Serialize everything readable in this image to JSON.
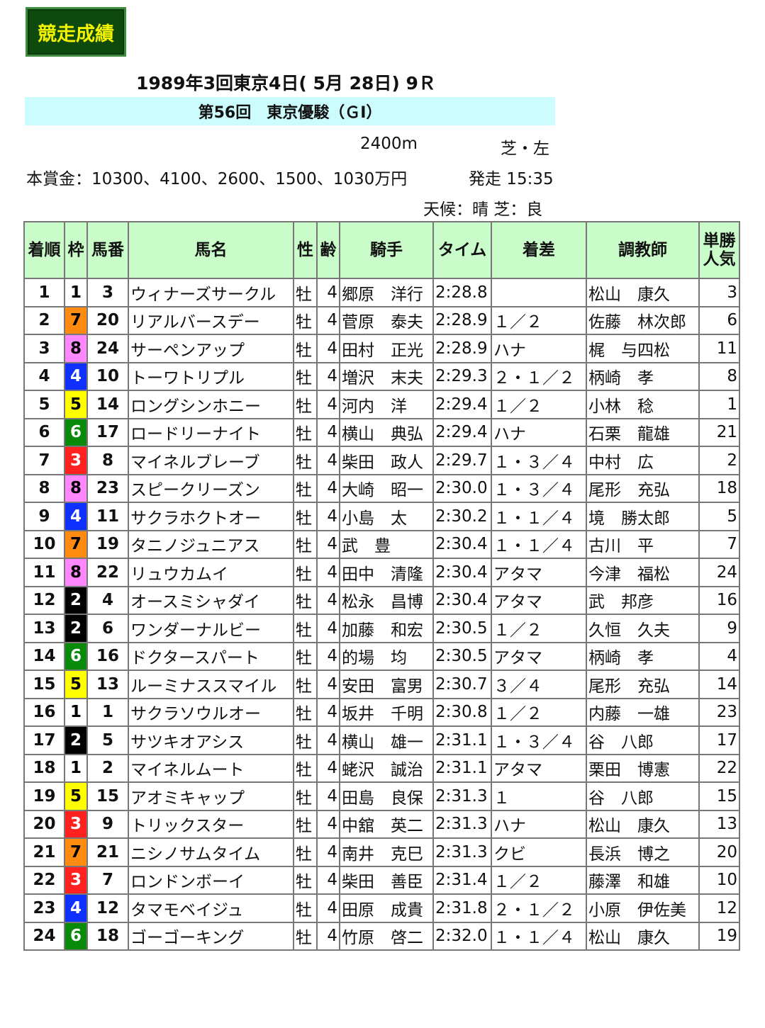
{
  "badge": "競走成績",
  "date": "1989年3回東京4日( 5月 28日) 9Ｒ",
  "race_name": "第56回　東京優駿（ＧⅠ）",
  "distance": "2400m",
  "surface": "芝・左",
  "prize": "本賞金：10300、4100、2600、1500、1030万円",
  "start": "発走 15:35",
  "weather": "天候：晴 芝：良",
  "frame_colors": {
    "1": [
      "#ffffff",
      "#000000"
    ],
    "2": [
      "#000000",
      "#ffffff"
    ],
    "3": [
      "#ff2020",
      "#ffffff"
    ],
    "4": [
      "#1030ff",
      "#ffffff"
    ],
    "5": [
      "#ffff00",
      "#000000"
    ],
    "6": [
      "#0a8a0a",
      "#ffffff"
    ],
    "7": [
      "#ff8c10",
      "#000000"
    ],
    "8": [
      "#ff88ff",
      "#000000"
    ]
  },
  "headers": [
    "着順",
    "枠",
    "馬番",
    "馬名",
    "性",
    "齢",
    "騎手",
    "タイム",
    "着差",
    "調教師",
    "単勝人気"
  ],
  "rows": [
    [
      "1",
      "1",
      "3",
      "ウィナーズサークル",
      "牡",
      "4",
      "郷原　洋行",
      "2:28.8",
      "",
      "松山　康久",
      "3"
    ],
    [
      "2",
      "7",
      "20",
      "リアルバースデー",
      "牡",
      "4",
      "菅原　泰夫",
      "2:28.9",
      "１／２",
      "佐藤　林次郎",
      "6"
    ],
    [
      "3",
      "8",
      "24",
      "サーペンアップ",
      "牡",
      "4",
      "田村　正光",
      "2:28.9",
      "ハナ",
      "梶　与四松",
      "11"
    ],
    [
      "4",
      "4",
      "10",
      "トーワトリプル",
      "牡",
      "4",
      "増沢　末夫",
      "2:29.3",
      "２・１／２",
      "柄崎　孝",
      "8"
    ],
    [
      "5",
      "5",
      "14",
      "ロングシンホニー",
      "牡",
      "4",
      "河内　洋",
      "2:29.4",
      "１／２",
      "小林　稔",
      "1"
    ],
    [
      "6",
      "6",
      "17",
      "ロードリーナイト",
      "牡",
      "4",
      "横山　典弘",
      "2:29.4",
      "ハナ",
      "石栗　龍雄",
      "21"
    ],
    [
      "7",
      "3",
      "8",
      "マイネルブレーブ",
      "牡",
      "4",
      "柴田　政人",
      "2:29.7",
      "１・３／４",
      "中村　広",
      "2"
    ],
    [
      "8",
      "8",
      "23",
      "スピークリーズン",
      "牡",
      "4",
      "大崎　昭一",
      "2:30.0",
      "１・３／４",
      "尾形　充弘",
      "18"
    ],
    [
      "9",
      "4",
      "11",
      "サクラホクトオー",
      "牡",
      "4",
      "小島　太",
      "2:30.2",
      "１・１／４",
      "境　勝太郎",
      "5"
    ],
    [
      "10",
      "7",
      "19",
      "タニノジュニアス",
      "牡",
      "4",
      "武　豊",
      "2:30.4",
      "１・１／４",
      "古川　平",
      "7"
    ],
    [
      "11",
      "8",
      "22",
      "リュウカムイ",
      "牡",
      "4",
      "田中　清隆",
      "2:30.4",
      "アタマ",
      "今津　福松",
      "24"
    ],
    [
      "12",
      "2",
      "4",
      "オースミシャダイ",
      "牡",
      "4",
      "松永　昌博",
      "2:30.4",
      "アタマ",
      "武　邦彦",
      "16"
    ],
    [
      "13",
      "2",
      "6",
      "ワンダーナルビー",
      "牡",
      "4",
      "加藤　和宏",
      "2:30.5",
      "１／２",
      "久恒　久夫",
      "9"
    ],
    [
      "14",
      "6",
      "16",
      "ドクタースパート",
      "牡",
      "4",
      "的場　均",
      "2:30.5",
      "アタマ",
      "柄崎　孝",
      "4"
    ],
    [
      "15",
      "5",
      "13",
      "ルーミナススマイル",
      "牡",
      "4",
      "安田　富男",
      "2:30.7",
      "３／４",
      "尾形　充弘",
      "14"
    ],
    [
      "16",
      "1",
      "1",
      "サクラソウルオー",
      "牡",
      "4",
      "坂井　千明",
      "2:30.8",
      "１／２",
      "内藤　一雄",
      "23"
    ],
    [
      "17",
      "2",
      "5",
      "サツキオアシス",
      "牡",
      "4",
      "横山　雄一",
      "2:31.1",
      "１・３／４",
      "谷　八郎",
      "17"
    ],
    [
      "18",
      "1",
      "2",
      "マイネルムート",
      "牡",
      "4",
      "蛯沢　誠治",
      "2:31.1",
      "アタマ",
      "栗田　博憲",
      "22"
    ],
    [
      "19",
      "5",
      "15",
      "アオミキャップ",
      "牡",
      "4",
      "田島　良保",
      "2:31.3",
      "１",
      "谷　八郎",
      "15"
    ],
    [
      "20",
      "3",
      "9",
      "トリックスター",
      "牡",
      "4",
      "中舘　英二",
      "2:31.3",
      "ハナ",
      "松山　康久",
      "13"
    ],
    [
      "21",
      "7",
      "21",
      "ニシノサムタイム",
      "牡",
      "4",
      "南井　克巳",
      "2:31.3",
      "クビ",
      "長浜　博之",
      "20"
    ],
    [
      "22",
      "3",
      "7",
      "ロンドンボーイ",
      "牡",
      "4",
      "柴田　善臣",
      "2:31.4",
      "１／２",
      "藤澤　和雄",
      "10"
    ],
    [
      "23",
      "4",
      "12",
      "タマモベイジュ",
      "牡",
      "4",
      "田原　成貴",
      "2:31.8",
      "２・１／２",
      "小原　伊佐美",
      "12"
    ],
    [
      "24",
      "6",
      "18",
      "ゴーゴーキング",
      "牡",
      "4",
      "竹原　啓二",
      "2:32.0",
      "１・１／４",
      "松山　康久",
      "19"
    ]
  ]
}
